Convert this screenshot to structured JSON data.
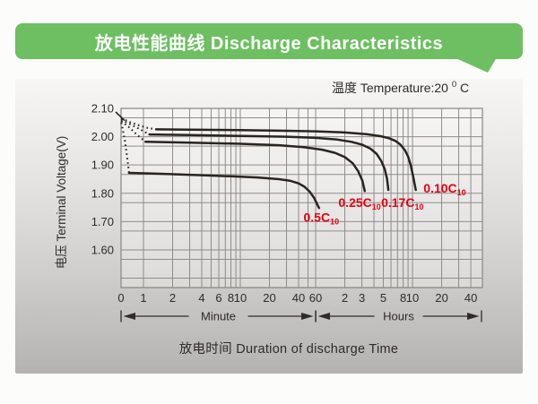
{
  "banner": {
    "title": "放电性能曲线 Discharge Characteristics"
  },
  "temperature": {
    "prefix": "温度 Temperature:20",
    "sup": "0",
    "suffix": "C"
  },
  "colors": {
    "banner_green": "#6dbf61",
    "curve": "#292420",
    "grid": "#8f8c88",
    "text": "#2e2b28",
    "series_label_red": "#e60012"
  },
  "chart_data": {
    "type": "line",
    "title": "Discharge Characteristics",
    "temperature_note": "温度 Temperature:20°C",
    "x_axis": {
      "title": "放电时间  Duration of discharge Time",
      "scale": "log-time",
      "unit_segments": [
        {
          "label": "Minute",
          "from_min": 0,
          "to_min": 60
        },
        {
          "label": "Hours",
          "from_min": 60,
          "to_min": 2400
        }
      ],
      "ticks": [
        {
          "label": "0",
          "t": 0
        },
        {
          "label": "1",
          "t": 1
        },
        {
          "label": "2",
          "t": 2
        },
        {
          "label": "4",
          "t": 4
        },
        {
          "label": "6",
          "t": 6
        },
        {
          "label": "8",
          "t": 8
        },
        {
          "label": "10",
          "t": 10
        },
        {
          "label": "20",
          "t": 20
        },
        {
          "label": "40",
          "t": 40
        },
        {
          "label": "60",
          "t": 60
        },
        {
          "label": "2",
          "t": 120
        },
        {
          "label": "3",
          "t": 180
        },
        {
          "label": "5",
          "t": 300
        },
        {
          "label": "8",
          "t": 480
        },
        {
          "label": "10",
          "t": 600
        },
        {
          "label": "20",
          "t": 1200
        },
        {
          "label": "40",
          "t": 2400
        }
      ],
      "gridlines_min": [
        1,
        2,
        3,
        4,
        5,
        6,
        7,
        8,
        9,
        10,
        20,
        30,
        40,
        50,
        60,
        120,
        180,
        240,
        300,
        360,
        420,
        480,
        540,
        600,
        1200,
        1800,
        2400
      ]
    },
    "y_axis": {
      "title": "电压 Terminal Voltage(V)",
      "ticks": [
        {
          "label": "2.10",
          "v": 2.1
        },
        {
          "label": "2.00",
          "v": 2.0
        },
        {
          "label": "1.90",
          "v": 1.9
        },
        {
          "label": "1.80",
          "v": 1.8
        },
        {
          "label": "1.70",
          "v": 1.7
        },
        {
          "label": "1.60",
          "v": 1.6
        }
      ],
      "range": [
        1.47,
        2.11
      ]
    },
    "series": [
      {
        "name": "0.10C10",
        "label": {
          "text": "0.10C",
          "sub": "10"
        },
        "label_anchor": {
          "t": 780,
          "v": 1.803
        },
        "dotted_lead": [
          [
            0.59,
            2.065
          ],
          [
            0.72,
            2.052
          ],
          [
            0.9,
            2.04
          ],
          [
            1.1,
            2.031
          ],
          [
            1.35,
            2.026
          ]
        ],
        "points": [
          [
            1.35,
            2.026
          ],
          [
            3,
            2.025
          ],
          [
            10,
            2.023
          ],
          [
            30,
            2.021
          ],
          [
            60,
            2.019
          ],
          [
            120,
            2.015
          ],
          [
            200,
            2.009
          ],
          [
            280,
            2.002
          ],
          [
            340,
            1.995
          ],
          [
            400,
            1.985
          ],
          [
            450,
            1.972
          ],
          [
            500,
            1.953
          ],
          [
            540,
            1.93
          ],
          [
            575,
            1.9
          ],
          [
            605,
            1.865
          ],
          [
            630,
            1.835
          ],
          [
            648,
            1.812
          ]
        ]
      },
      {
        "name": "0.17C10",
        "label": {
          "text": "0.17C",
          "sub": "10"
        },
        "label_anchor": {
          "t": 285,
          "v": 1.752
        },
        "dotted_lead": [
          [
            0.59,
            2.06
          ],
          [
            0.72,
            2.045
          ],
          [
            0.9,
            2.028
          ],
          [
            1.15,
            2.008
          ]
        ],
        "points": [
          [
            1.15,
            2.008
          ],
          [
            3,
            2.006
          ],
          [
            10,
            2.003
          ],
          [
            30,
            2.0
          ],
          [
            60,
            1.996
          ],
          [
            100,
            1.99
          ],
          [
            140,
            1.982
          ],
          [
            180,
            1.972
          ],
          [
            220,
            1.958
          ],
          [
            255,
            1.94
          ],
          [
            285,
            1.915
          ],
          [
            310,
            1.885
          ],
          [
            328,
            1.85
          ],
          [
            338,
            1.812
          ]
        ]
      },
      {
        "name": "0.25C10",
        "label": {
          "text": "0.25C",
          "sub": "10"
        },
        "label_anchor": {
          "t": 103,
          "v": 1.752
        },
        "dotted_lead": [
          [
            0.59,
            2.055
          ],
          [
            0.7,
            2.035
          ],
          [
            0.85,
            2.008
          ],
          [
            1.05,
            1.982
          ]
        ],
        "points": [
          [
            1.05,
            1.982
          ],
          [
            3,
            1.979
          ],
          [
            10,
            1.975
          ],
          [
            25,
            1.97
          ],
          [
            45,
            1.963
          ],
          [
            70,
            1.954
          ],
          [
            95,
            1.943
          ],
          [
            120,
            1.928
          ],
          [
            145,
            1.906
          ],
          [
            165,
            1.878
          ],
          [
            182,
            1.845
          ],
          [
            193,
            1.808
          ]
        ]
      },
      {
        "name": "0.5C10",
        "label": {
          "text": "0.5C",
          "sub": "10"
        },
        "label_anchor": {
          "t": 45,
          "v": 1.7
        },
        "dotted_lead": [
          [
            0.59,
            2.05
          ],
          [
            0.64,
            1.99
          ],
          [
            0.68,
            1.925
          ],
          [
            0.71,
            1.872
          ]
        ],
        "points": [
          [
            0.71,
            1.872
          ],
          [
            1.5,
            1.869
          ],
          [
            4,
            1.864
          ],
          [
            8,
            1.86
          ],
          [
            15,
            1.856
          ],
          [
            25,
            1.85
          ],
          [
            33,
            1.844
          ],
          [
            40,
            1.835
          ],
          [
            46,
            1.823
          ],
          [
            52,
            1.806
          ],
          [
            58,
            1.783
          ],
          [
            62,
            1.762
          ],
          [
            65,
            1.748
          ]
        ]
      }
    ]
  }
}
